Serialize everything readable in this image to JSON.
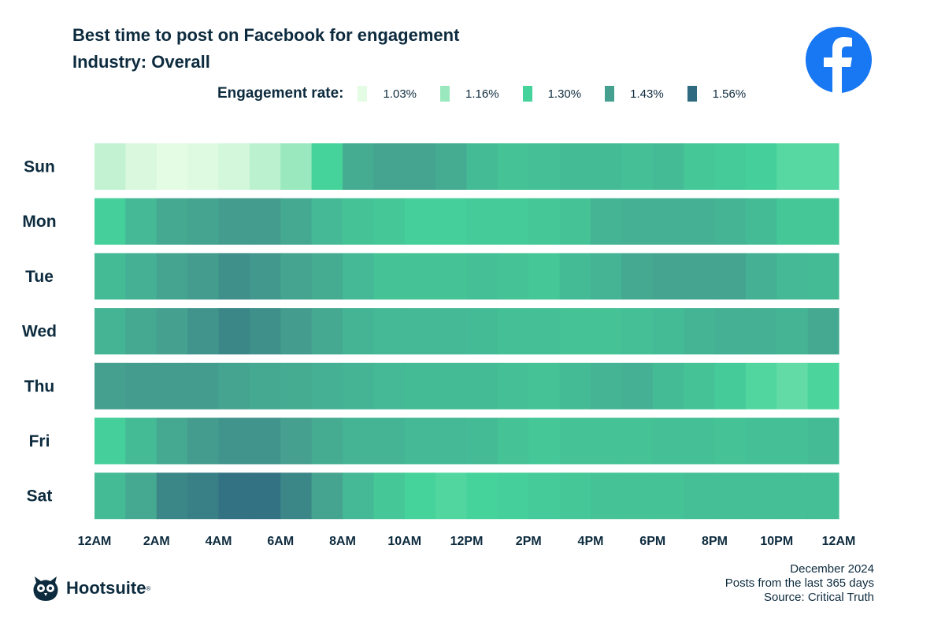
{
  "header": {
    "title": "Best time to post on Facebook for engagement",
    "subtitle": "Industry: Overall"
  },
  "brand": {
    "facebook_icon": "facebook-logo",
    "facebook_color": "#1877f2",
    "logo_text": "Hootsuite",
    "logo_mark": "®"
  },
  "footer": {
    "date": "December 2024",
    "range": "Posts from the last 365 days",
    "source": "Source: Critical Truth"
  },
  "chart_data": {
    "type": "heatmap",
    "title": "Best time to post on Facebook for engagement",
    "legend": {
      "title": "Engagement rate:",
      "placement": "top",
      "entries": [
        {
          "label": "1.03%",
          "value": 1.03,
          "color": "#e4fbe4"
        },
        {
          "label": "1.16%",
          "value": 1.16,
          "color": "#9ae8bd"
        },
        {
          "label": "1.30%",
          "value": 1.3,
          "color": "#45d39b"
        },
        {
          "label": "1.43%",
          "value": 1.43,
          "color": "#45a08f"
        },
        {
          "label": "1.56%",
          "value": 1.56,
          "color": "#306a80"
        }
      ]
    },
    "x_tick_labels": [
      "12AM",
      "2AM",
      "4AM",
      "6AM",
      "8AM",
      "10AM",
      "12PM",
      "2PM",
      "4PM",
      "6PM",
      "8PM",
      "10PM",
      "12AM"
    ],
    "rows": [
      "Sun",
      "Mon",
      "Tue",
      "Wed",
      "Thu",
      "Fri",
      "Sat"
    ],
    "hours": 24,
    "unit": "%",
    "values": [
      [
        1.09,
        1.05,
        1.03,
        1.04,
        1.06,
        1.1,
        1.16,
        1.3,
        1.4,
        1.42,
        1.42,
        1.4,
        1.36,
        1.34,
        1.35,
        1.36,
        1.36,
        1.35,
        1.36,
        1.33,
        1.32,
        1.31,
        1.27,
        1.27
      ],
      [
        1.31,
        1.37,
        1.41,
        1.42,
        1.44,
        1.44,
        1.41,
        1.37,
        1.34,
        1.33,
        1.31,
        1.31,
        1.32,
        1.32,
        1.33,
        1.34,
        1.38,
        1.39,
        1.39,
        1.39,
        1.38,
        1.36,
        1.33,
        1.33
      ],
      [
        1.36,
        1.39,
        1.42,
        1.44,
        1.47,
        1.45,
        1.42,
        1.4,
        1.37,
        1.34,
        1.34,
        1.34,
        1.35,
        1.34,
        1.33,
        1.36,
        1.38,
        1.41,
        1.42,
        1.42,
        1.42,
        1.39,
        1.37,
        1.36
      ],
      [
        1.38,
        1.41,
        1.43,
        1.46,
        1.49,
        1.47,
        1.44,
        1.41,
        1.38,
        1.37,
        1.37,
        1.37,
        1.36,
        1.35,
        1.35,
        1.34,
        1.34,
        1.35,
        1.36,
        1.38,
        1.39,
        1.39,
        1.38,
        1.41
      ],
      [
        1.43,
        1.44,
        1.44,
        1.44,
        1.42,
        1.41,
        1.4,
        1.39,
        1.38,
        1.37,
        1.36,
        1.36,
        1.36,
        1.35,
        1.34,
        1.36,
        1.38,
        1.39,
        1.36,
        1.34,
        1.32,
        1.28,
        1.25,
        1.29
      ],
      [
        1.31,
        1.36,
        1.41,
        1.44,
        1.46,
        1.46,
        1.43,
        1.4,
        1.38,
        1.38,
        1.37,
        1.37,
        1.36,
        1.34,
        1.33,
        1.34,
        1.34,
        1.34,
        1.35,
        1.35,
        1.34,
        1.35,
        1.35,
        1.36
      ],
      [
        1.36,
        1.41,
        1.49,
        1.51,
        1.54,
        1.54,
        1.49,
        1.42,
        1.37,
        1.33,
        1.3,
        1.28,
        1.3,
        1.31,
        1.32,
        1.33,
        1.34,
        1.34,
        1.34,
        1.35,
        1.35,
        1.35,
        1.35,
        1.35
      ]
    ]
  }
}
